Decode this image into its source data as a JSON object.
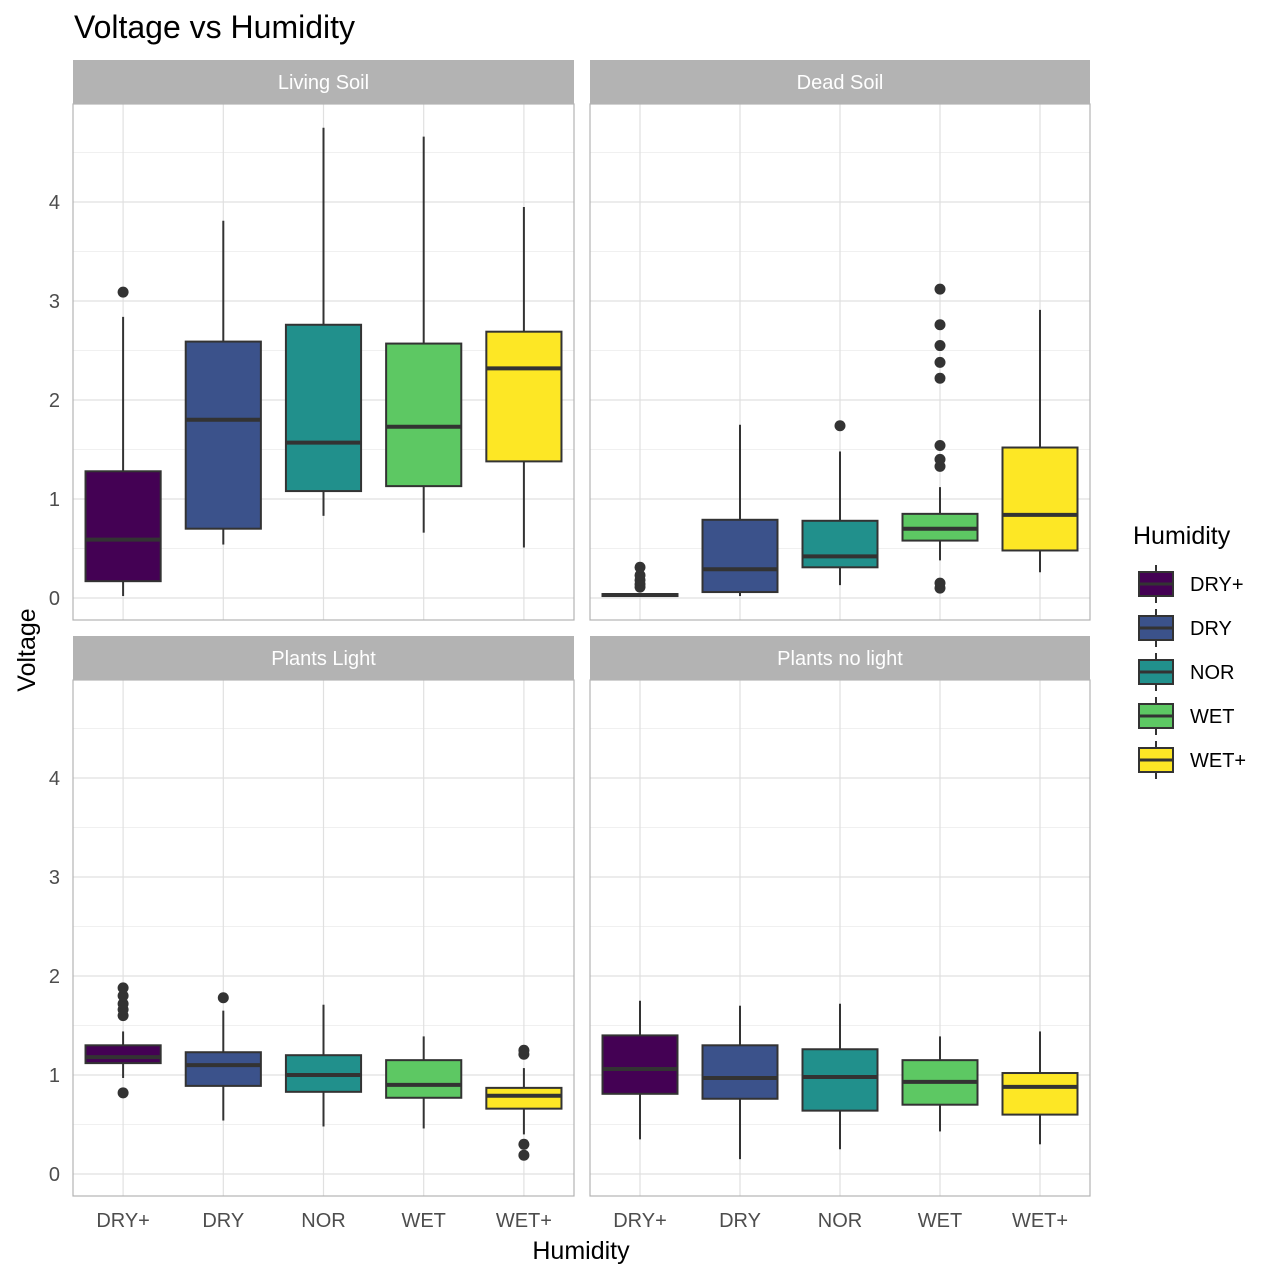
{
  "chart_data": {
    "type": "boxplot",
    "title": "Voltage vs Humidity",
    "xlabel": "Humidity",
    "ylabel": "Voltage",
    "ylim": [
      -0.2,
      5.0
    ],
    "y_ticks": [
      0,
      1,
      2,
      3,
      4
    ],
    "categories": [
      "DRY+",
      "DRY",
      "NOR",
      "WET",
      "WET+"
    ],
    "legend": {
      "title": "Humidity",
      "position": "right",
      "entries": [
        "DRY+",
        "DRY",
        "NOR",
        "WET",
        "WET+"
      ]
    },
    "colors": {
      "DRY+": "#440154",
      "DRY": "#3b528b",
      "NOR": "#21908c",
      "WET": "#5dc863",
      "WET+": "#fde725"
    },
    "grid": true,
    "facets": [
      {
        "name": "Living Soil",
        "boxes": [
          {
            "category": "DRY+",
            "whisker_low": 0.02,
            "q1": 0.17,
            "median": 0.59,
            "q3": 1.28,
            "whisker_high": 2.84,
            "outliers": [
              3.09
            ]
          },
          {
            "category": "DRY",
            "whisker_low": 0.54,
            "q1": 0.7,
            "median": 1.8,
            "q3": 2.59,
            "whisker_high": 3.81,
            "outliers": []
          },
          {
            "category": "NOR",
            "whisker_low": 0.83,
            "q1": 1.08,
            "median": 1.57,
            "q3": 2.76,
            "whisker_high": 4.75,
            "outliers": []
          },
          {
            "category": "WET",
            "whisker_low": 0.66,
            "q1": 1.13,
            "median": 1.73,
            "q3": 2.57,
            "whisker_high": 4.66,
            "outliers": []
          },
          {
            "category": "WET+",
            "whisker_low": 0.51,
            "q1": 1.38,
            "median": 2.32,
            "q3": 2.69,
            "whisker_high": 3.95,
            "outliers": []
          }
        ]
      },
      {
        "name": "Dead Soil",
        "boxes": [
          {
            "category": "DRY+",
            "whisker_low": 0.01,
            "q1": 0.02,
            "median": 0.03,
            "q3": 0.04,
            "whisker_high": 0.05,
            "outliers": [
              0.11,
              0.14,
              0.18,
              0.23,
              0.31
            ]
          },
          {
            "category": "DRY",
            "whisker_low": 0.02,
            "q1": 0.06,
            "median": 0.29,
            "q3": 0.79,
            "whisker_high": 1.75,
            "outliers": []
          },
          {
            "category": "NOR",
            "whisker_low": 0.13,
            "q1": 0.31,
            "median": 0.42,
            "q3": 0.78,
            "whisker_high": 1.48,
            "outliers": [
              1.74
            ]
          },
          {
            "category": "WET",
            "whisker_low": 0.38,
            "q1": 0.58,
            "median": 0.7,
            "q3": 0.85,
            "whisker_high": 1.12,
            "outliers": [
              0.1,
              0.15,
              1.33,
              1.4,
              1.54,
              2.22,
              2.38,
              2.55,
              2.76,
              3.12
            ]
          },
          {
            "category": "WET+",
            "whisker_low": 0.26,
            "q1": 0.48,
            "median": 0.84,
            "q3": 1.52,
            "whisker_high": 2.91,
            "outliers": []
          }
        ]
      },
      {
        "name": "Plants Light",
        "boxes": [
          {
            "category": "DRY+",
            "whisker_low": 0.97,
            "q1": 1.12,
            "median": 1.18,
            "q3": 1.3,
            "whisker_high": 1.44,
            "outliers": [
              0.82,
              1.6,
              1.66,
              1.72,
              1.8,
              1.88
            ]
          },
          {
            "category": "DRY",
            "whisker_low": 0.54,
            "q1": 0.89,
            "median": 1.1,
            "q3": 1.23,
            "whisker_high": 1.65,
            "outliers": [
              1.78
            ]
          },
          {
            "category": "NOR",
            "whisker_low": 0.48,
            "q1": 0.83,
            "median": 1.0,
            "q3": 1.2,
            "whisker_high": 1.71,
            "outliers": []
          },
          {
            "category": "WET",
            "whisker_low": 0.46,
            "q1": 0.77,
            "median": 0.9,
            "q3": 1.15,
            "whisker_high": 1.39,
            "outliers": []
          },
          {
            "category": "WET+",
            "whisker_low": 0.4,
            "q1": 0.66,
            "median": 0.79,
            "q3": 0.87,
            "whisker_high": 1.07,
            "outliers": [
              0.19,
              0.3,
              1.21,
              1.25
            ]
          }
        ]
      },
      {
        "name": "Plants no light",
        "boxes": [
          {
            "category": "DRY+",
            "whisker_low": 0.35,
            "q1": 0.81,
            "median": 1.06,
            "q3": 1.4,
            "whisker_high": 1.75,
            "outliers": []
          },
          {
            "category": "DRY",
            "whisker_low": 0.15,
            "q1": 0.76,
            "median": 0.97,
            "q3": 1.3,
            "whisker_high": 1.7,
            "outliers": []
          },
          {
            "category": "NOR",
            "whisker_low": 0.25,
            "q1": 0.64,
            "median": 0.98,
            "q3": 1.26,
            "whisker_high": 1.72,
            "outliers": []
          },
          {
            "category": "WET",
            "whisker_low": 0.43,
            "q1": 0.7,
            "median": 0.93,
            "q3": 1.15,
            "whisker_high": 1.39,
            "outliers": []
          },
          {
            "category": "WET+",
            "whisker_low": 0.3,
            "q1": 0.6,
            "median": 0.88,
            "q3": 1.02,
            "whisker_high": 1.44,
            "outliers": []
          }
        ]
      }
    ]
  }
}
